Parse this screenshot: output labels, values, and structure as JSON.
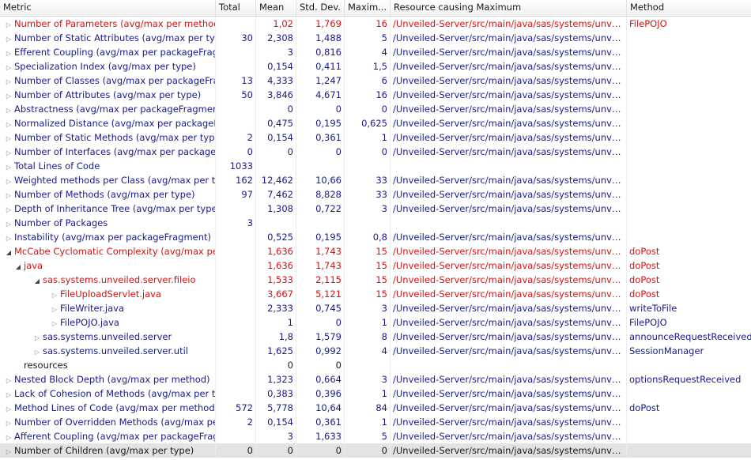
{
  "columns": {
    "metric": "Metric",
    "total": "Total",
    "mean": "Mean",
    "std": "Std. Dev.",
    "max": "Maxim...",
    "resource": "Resource causing Maximum",
    "method": "Method"
  },
  "glyphs": {
    "collapsed": "▷",
    "expanded": "◢"
  },
  "colors": {
    "default_text": "#1a1a8c",
    "highlight_text": "#d21414",
    "plain_text": "#1a1a1a",
    "selected_row": "#e3e3e3"
  },
  "rows": [
    {
      "label": "Number of Parameters (avg/max per method)",
      "total": "",
      "mean": "1,02",
      "std": "1,769",
      "max": "16",
      "resource": "/Unveiled-Server/src/main/java/sas/systems/unveile...",
      "method": "FilePOJO",
      "indent": 0,
      "state": "collapsed",
      "style": "red"
    },
    {
      "label": "Number of Static Attributes (avg/max per type)",
      "total": "30",
      "mean": "2,308",
      "std": "1,488",
      "max": "5",
      "resource": "/Unveiled-Server/src/main/java/sas/systems/unveile...",
      "method": "",
      "indent": 0,
      "state": "collapsed",
      "style": ""
    },
    {
      "label": "Efferent Coupling (avg/max per packageFragment)",
      "total": "",
      "mean": "3",
      "std": "0,816",
      "max": "4",
      "resource": "/Unveiled-Server/src/main/java/sas/systems/unveile...",
      "method": "",
      "indent": 0,
      "state": "collapsed",
      "style": ""
    },
    {
      "label": "Specialization Index (avg/max per type)",
      "total": "",
      "mean": "0,154",
      "std": "0,411",
      "max": "1,5",
      "resource": "/Unveiled-Server/src/main/java/sas/systems/unveile...",
      "method": "",
      "indent": 0,
      "state": "collapsed",
      "style": ""
    },
    {
      "label": "Number of Classes (avg/max per packageFragment)",
      "total": "13",
      "mean": "4,333",
      "std": "1,247",
      "max": "6",
      "resource": "/Unveiled-Server/src/main/java/sas/systems/unveile...",
      "method": "",
      "indent": 0,
      "state": "collapsed",
      "style": ""
    },
    {
      "label": "Number of Attributes (avg/max per type)",
      "total": "50",
      "mean": "3,846",
      "std": "4,671",
      "max": "16",
      "resource": "/Unveiled-Server/src/main/java/sas/systems/unveile...",
      "method": "",
      "indent": 0,
      "state": "collapsed",
      "style": ""
    },
    {
      "label": "Abstractness (avg/max per packageFragment)",
      "total": "",
      "mean": "0",
      "std": "0",
      "max": "0",
      "resource": "/Unveiled-Server/src/main/java/sas/systems/unveile...",
      "method": "",
      "indent": 0,
      "state": "collapsed",
      "style": ""
    },
    {
      "label": "Normalized Distance (avg/max per packageFragment)",
      "total": "",
      "mean": "0,475",
      "std": "0,195",
      "max": "0,625",
      "resource": "/Unveiled-Server/src/main/java/sas/systems/unveile...",
      "method": "",
      "indent": 0,
      "state": "collapsed",
      "style": ""
    },
    {
      "label": "Number of Static Methods (avg/max per type)",
      "total": "2",
      "mean": "0,154",
      "std": "0,361",
      "max": "1",
      "resource": "/Unveiled-Server/src/main/java/sas/systems/unveile...",
      "method": "",
      "indent": 0,
      "state": "collapsed",
      "style": ""
    },
    {
      "label": "Number of Interfaces (avg/max per packageFragment)",
      "total": "0",
      "mean": "0",
      "std": "0",
      "max": "0",
      "resource": "/Unveiled-Server/src/main/java/sas/systems/unveile...",
      "method": "",
      "indent": 0,
      "state": "collapsed",
      "style": ""
    },
    {
      "label": "Total Lines of Code",
      "total": "1033",
      "mean": "",
      "std": "",
      "max": "",
      "resource": "",
      "method": "",
      "indent": 0,
      "state": "collapsed",
      "style": ""
    },
    {
      "label": "Weighted methods per Class (avg/max per type)",
      "total": "162",
      "mean": "12,462",
      "std": "10,66",
      "max": "33",
      "resource": "/Unveiled-Server/src/main/java/sas/systems/unveile...",
      "method": "",
      "indent": 0,
      "state": "collapsed",
      "style": ""
    },
    {
      "label": "Number of Methods (avg/max per type)",
      "total": "97",
      "mean": "7,462",
      "std": "8,828",
      "max": "33",
      "resource": "/Unveiled-Server/src/main/java/sas/systems/unveile...",
      "method": "",
      "indent": 0,
      "state": "collapsed",
      "style": ""
    },
    {
      "label": "Depth of Inheritance Tree (avg/max per type)",
      "total": "",
      "mean": "1,308",
      "std": "0,722",
      "max": "3",
      "resource": "/Unveiled-Server/src/main/java/sas/systems/unveile...",
      "method": "",
      "indent": 0,
      "state": "collapsed",
      "style": ""
    },
    {
      "label": "Number of Packages",
      "total": "3",
      "mean": "",
      "std": "",
      "max": "",
      "resource": "",
      "method": "",
      "indent": 0,
      "state": "collapsed",
      "style": ""
    },
    {
      "label": "Instability (avg/max per packageFragment)",
      "total": "",
      "mean": "0,525",
      "std": "0,195",
      "max": "0,8",
      "resource": "/Unveiled-Server/src/main/java/sas/systems/unveile...",
      "method": "",
      "indent": 0,
      "state": "collapsed",
      "style": ""
    },
    {
      "label": "McCabe Cyclomatic Complexity (avg/max per method)",
      "total": "",
      "mean": "1,636",
      "std": "1,743",
      "max": "15",
      "resource": "/Unveiled-Server/src/main/java/sas/systems/unveile...",
      "method": "doPost",
      "indent": 0,
      "state": "expanded",
      "style": "red"
    },
    {
      "label": "java",
      "total": "",
      "mean": "1,636",
      "std": "1,743",
      "max": "15",
      "resource": "/Unveiled-Server/src/main/java/sas/systems/unveile...",
      "method": "doPost",
      "indent": 1,
      "state": "expanded",
      "style": "red"
    },
    {
      "label": "sas.systems.unveiled.server.fileio",
      "total": "",
      "mean": "1,533",
      "std": "2,115",
      "max": "15",
      "resource": "/Unveiled-Server/src/main/java/sas/systems/unveile...",
      "method": "doPost",
      "indent": 2,
      "state": "expanded",
      "style": "red"
    },
    {
      "label": "FileUploadServlet.java",
      "total": "",
      "mean": "3,667",
      "std": "5,121",
      "max": "15",
      "resource": "/Unveiled-Server/src/main/java/sas/systems/unveile...",
      "method": "doPost",
      "indent": 3,
      "state": "collapsed",
      "style": "red"
    },
    {
      "label": "FileWriter.java",
      "total": "",
      "mean": "2,333",
      "std": "0,745",
      "max": "3",
      "resource": "/Unveiled-Server/src/main/java/sas/systems/unveile...",
      "method": "writeToFile",
      "indent": 3,
      "state": "collapsed",
      "style": ""
    },
    {
      "label": "FilePOJO.java",
      "total": "",
      "mean": "1",
      "std": "0",
      "max": "1",
      "resource": "/Unveiled-Server/src/main/java/sas/systems/unveile...",
      "method": "FilePOJO",
      "indent": 3,
      "state": "collapsed",
      "style": ""
    },
    {
      "label": "sas.systems.unveiled.server",
      "total": "",
      "mean": "1,8",
      "std": "1,579",
      "max": "8",
      "resource": "/Unveiled-Server/src/main/java/sas/systems/unveile...",
      "method": "announceRequestReceived",
      "indent": 2,
      "state": "collapsed",
      "style": ""
    },
    {
      "label": "sas.systems.unveiled.server.util",
      "total": "",
      "mean": "1,625",
      "std": "0,992",
      "max": "4",
      "resource": "/Unveiled-Server/src/main/java/sas/systems/unveile...",
      "method": "SessionManager",
      "indent": 2,
      "state": "collapsed",
      "style": ""
    },
    {
      "label": "resources",
      "total": "",
      "mean": "0",
      "std": "0",
      "max": "",
      "resource": "",
      "method": "",
      "indent": 1,
      "state": "none",
      "style": "dark"
    },
    {
      "label": "Nested Block Depth (avg/max per method)",
      "total": "",
      "mean": "1,323",
      "std": "0,664",
      "max": "3",
      "resource": "/Unveiled-Server/src/main/java/sas/systems/unveile...",
      "method": "optionsRequestReceived",
      "indent": 0,
      "state": "collapsed",
      "style": ""
    },
    {
      "label": "Lack of Cohesion of Methods (avg/max per type)",
      "total": "",
      "mean": "0,383",
      "std": "0,396",
      "max": "1",
      "resource": "/Unveiled-Server/src/main/java/sas/systems/unveile...",
      "method": "",
      "indent": 0,
      "state": "collapsed",
      "style": ""
    },
    {
      "label": "Method Lines of Code (avg/max per method)",
      "total": "572",
      "mean": "5,778",
      "std": "10,64",
      "max": "84",
      "resource": "/Unveiled-Server/src/main/java/sas/systems/unveile...",
      "method": "doPost",
      "indent": 0,
      "state": "collapsed",
      "style": ""
    },
    {
      "label": "Number of Overridden Methods (avg/max per type)",
      "total": "2",
      "mean": "0,154",
      "std": "0,361",
      "max": "1",
      "resource": "/Unveiled-Server/src/main/java/sas/systems/unveile...",
      "method": "",
      "indent": 0,
      "state": "collapsed",
      "style": ""
    },
    {
      "label": "Afferent Coupling (avg/max per packageFragment)",
      "total": "",
      "mean": "3",
      "std": "1,633",
      "max": "5",
      "resource": "/Unveiled-Server/src/main/java/sas/systems/unveile...",
      "method": "",
      "indent": 0,
      "state": "collapsed",
      "style": ""
    },
    {
      "label": "Number of Children (avg/max per type)",
      "total": "0",
      "mean": "0",
      "std": "0",
      "max": "0",
      "resource": "/Unveiled-Server/src/main/java/sas/systems/unveile...",
      "method": "",
      "indent": 0,
      "state": "collapsed",
      "style": "selected"
    }
  ]
}
